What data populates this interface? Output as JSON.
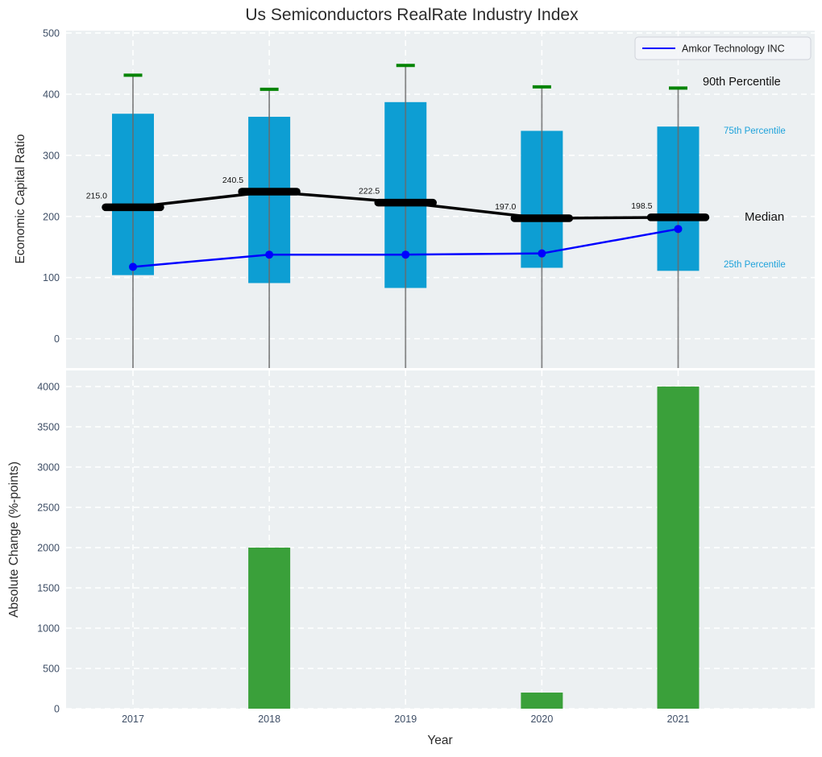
{
  "figure_title": "Us Semiconductors RealRate Industry Index",
  "colors": {
    "plot_background": "#ecf0f2",
    "grid": "#ffffff",
    "iqr_bar": "#0d9ed3",
    "p90_cap": "#048404",
    "whisker": "#6a6a6a",
    "median": "#000000",
    "amkor_line": "#0000ff",
    "change_bar": "#3aa03a",
    "tick_label": "#3e4e66",
    "percentile_label_blue": "#1ea2db"
  },
  "chart_data": [
    {
      "type": "box+line",
      "title": "Us Semiconductors RealRate Industry Index",
      "ylabel": "Economic Capital Ratio",
      "categories": [
        "2017",
        "2018",
        "2019",
        "2020",
        "2021"
      ],
      "series": [
        {
          "name": "25th Percentile",
          "values": [
            104,
            91,
            83,
            116,
            111
          ]
        },
        {
          "name": "Median",
          "values": [
            215.0,
            240.5,
            222.5,
            197.0,
            198.5
          ]
        },
        {
          "name": "75th Percentile",
          "values": [
            368,
            363,
            387,
            340,
            347
          ]
        },
        {
          "name": "90th Percentile",
          "values": [
            431,
            408,
            447,
            412,
            410
          ]
        },
        {
          "name": "Amkor Technology INC",
          "values": [
            117.5,
            137.5,
            137.5,
            139.5,
            179.5
          ]
        }
      ],
      "median_labels": [
        "215.0",
        "240.5",
        "222.5",
        "197.0",
        "198.5"
      ],
      "ylim": [
        -48,
        504
      ],
      "yticks": [
        0,
        100,
        200,
        300,
        400,
        500
      ],
      "grid": true,
      "legend": {
        "label": "Amkor Technology INC",
        "position": "upper right"
      },
      "annotations": [
        "90th Percentile",
        "75th Percentile",
        "Median",
        "25th Percentile"
      ]
    },
    {
      "type": "bar",
      "categories": [
        "2017",
        "2018",
        "2019",
        "2020",
        "2021"
      ],
      "values": [
        0,
        2000,
        0,
        200,
        4000
      ],
      "title": "",
      "xlabel": "Year",
      "ylabel": "Absolute Change (%-points)",
      "ylim": [
        0,
        4200
      ],
      "yticks": [
        0,
        500,
        1000,
        1500,
        2000,
        2500,
        3000,
        3500,
        4000
      ],
      "grid": true
    }
  ]
}
